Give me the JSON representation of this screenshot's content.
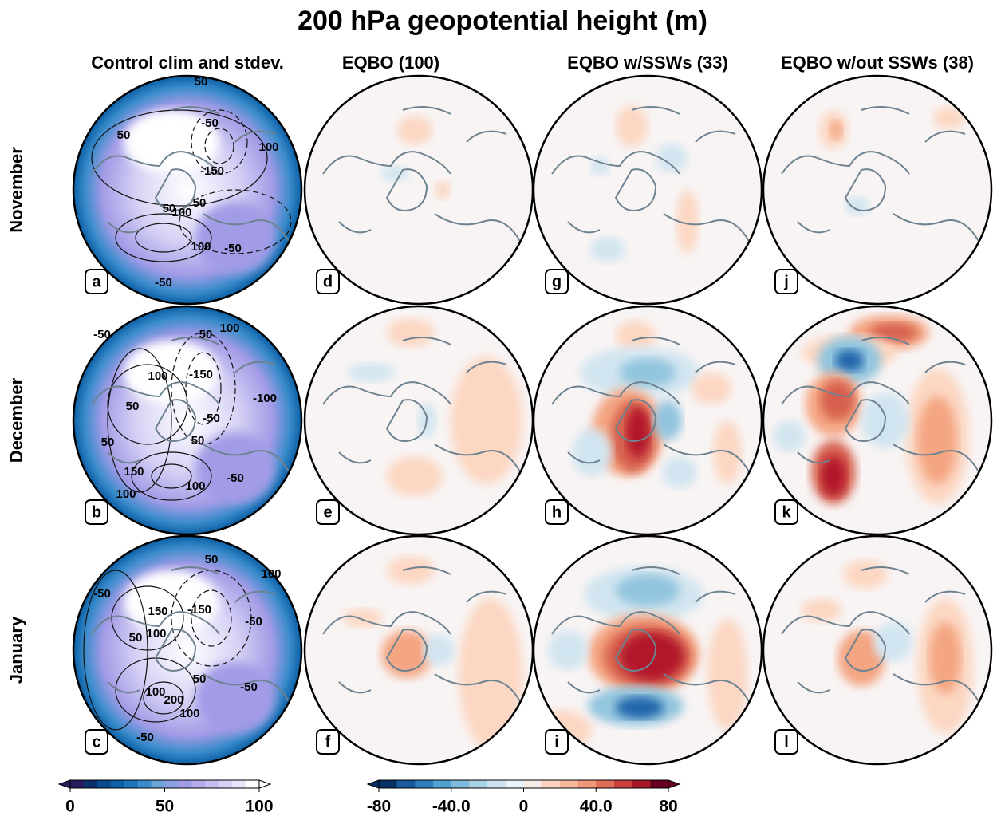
{
  "title": "200 hPa geopotential height (m)",
  "columns": [
    "Control clim and stdev.",
    "EQBO (100)",
    "EQBO w/SSWs (33)",
    "EQBO w/out SSWs (38)"
  ],
  "rows": [
    "November",
    "December",
    "January"
  ],
  "panels": [
    {
      "letter": "a",
      "contour_labels": [
        "50",
        "-50",
        "50",
        "100",
        "-150",
        "50",
        "100",
        "50",
        "100",
        "-50",
        "-50"
      ]
    },
    {
      "letter": "b",
      "contour_labels": [
        "-50",
        "100",
        "50",
        "-150",
        "100",
        "-100",
        "50",
        "-50",
        "50",
        "50",
        "150",
        "100",
        "-50",
        "100"
      ]
    },
    {
      "letter": "c",
      "contour_labels": [
        "50",
        "100",
        "-50",
        "150",
        "-150",
        "50",
        "100",
        "-50",
        "50",
        "100",
        "200",
        "100",
        "-50",
        "-50"
      ]
    },
    {
      "letter": "d"
    },
    {
      "letter": "e"
    },
    {
      "letter": "f"
    },
    {
      "letter": "g"
    },
    {
      "letter": "h"
    },
    {
      "letter": "i"
    },
    {
      "letter": "j"
    },
    {
      "letter": "k"
    },
    {
      "letter": "l"
    }
  ],
  "colorbars": [
    {
      "lim": [
        0,
        100
      ],
      "ticks": [
        0,
        50,
        100
      ],
      "colors": [
        "#2a1a5e",
        "#0d2f6b",
        "#084a8c",
        "#0b5fa5",
        "#1a75bb",
        "#3a8ccb",
        "#6aa5d8",
        "#8c9fe0",
        "#a29be6",
        "#b3acec",
        "#c4bff0",
        "#d6d2f5",
        "#e8e6fa",
        "#ffffff"
      ]
    },
    {
      "lim": [
        -80,
        80
      ],
      "ticks": [
        -80,
        {
          "value": -40,
          "label": "-40.0"
        },
        0,
        {
          "value": 40,
          "label": "40.0"
        },
        80
      ],
      "colors": [
        "#053061",
        "#1a5a9c",
        "#2e7fc0",
        "#4fa1cf",
        "#7fbadc",
        "#a8d0e6",
        "#cde2ef",
        "#ecf2f6",
        "#f9ece6",
        "#fbd3c0",
        "#f7b79b",
        "#f0977a",
        "#e06d57",
        "#c9423e",
        "#a61a2c",
        "#67001f"
      ]
    }
  ]
}
